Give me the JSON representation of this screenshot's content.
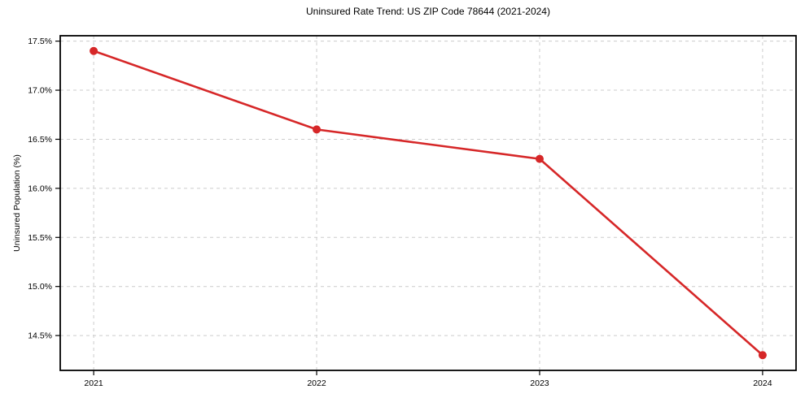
{
  "chart_data": {
    "type": "line",
    "title": "Uninsured Rate Trend: US ZIP Code 78644 (2021-2024)",
    "xlabel": "",
    "ylabel": "Uninsured Population (%)",
    "x": [
      2021,
      2022,
      2023,
      2024
    ],
    "series": [
      {
        "name": "uninsured-rate",
        "values": [
          17.4,
          16.6,
          16.3,
          14.3
        ],
        "color": "#d62728",
        "marker": "circle",
        "line_width": 2.6,
        "marker_radius": 5
      }
    ],
    "xticks": [
      {
        "value": 2021,
        "label": "2021"
      },
      {
        "value": 2022,
        "label": "2022"
      },
      {
        "value": 2023,
        "label": "2023"
      },
      {
        "value": 2024,
        "label": "2024"
      }
    ],
    "yticks": [
      {
        "value": 17.5,
        "label": "17.5%"
      },
      {
        "value": 17.0,
        "label": "17.0%"
      },
      {
        "value": 16.5,
        "label": "16.5%"
      },
      {
        "value": 16.0,
        "label": "16.0%"
      },
      {
        "value": 15.5,
        "label": "15.5%"
      },
      {
        "value": 15.0,
        "label": "15.0%"
      },
      {
        "value": 14.5,
        "label": "14.5%"
      }
    ],
    "xlim": [
      2020.85,
      2024.15
    ],
    "ylim": [
      14.145,
      17.555
    ],
    "grid": {
      "visible": true,
      "style": "dashed",
      "color": "#cccccc"
    },
    "axes_color": "#000000",
    "background": "#ffffff",
    "legend": "none"
  }
}
